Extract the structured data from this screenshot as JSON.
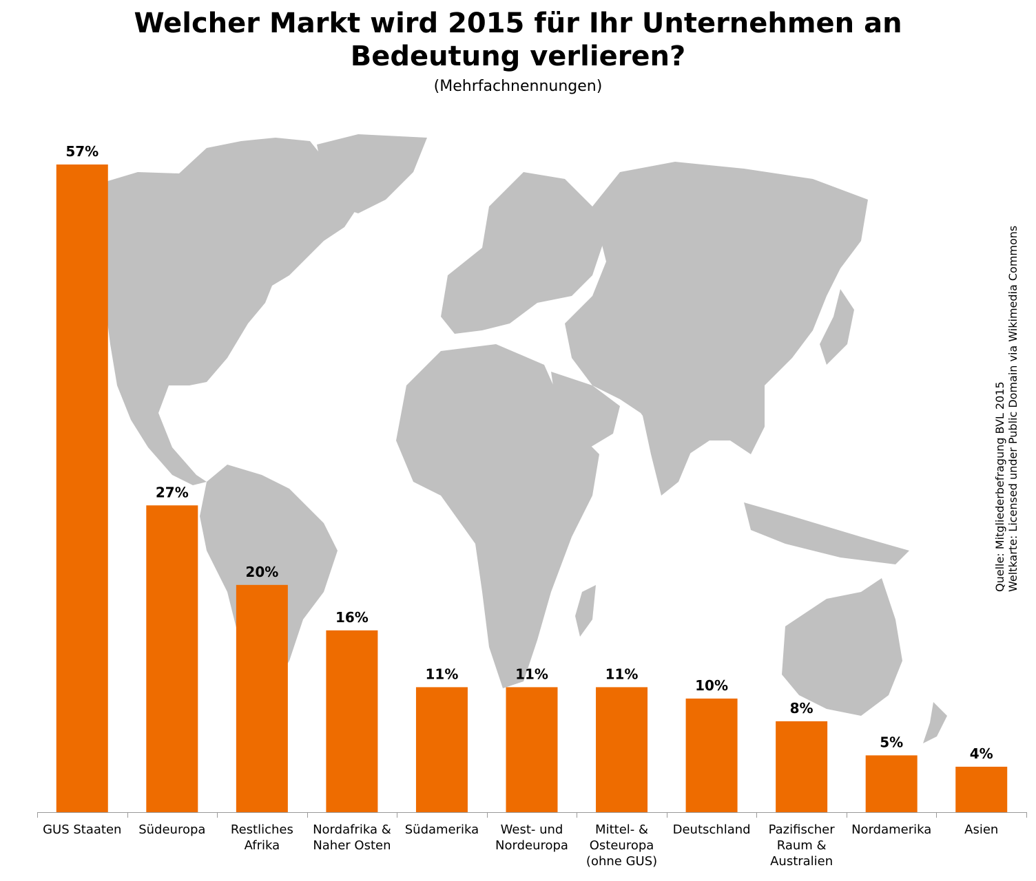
{
  "chart_data": {
    "type": "bar",
    "title_lines": [
      "Welcher Markt wird 2015 für Ihr Unternehmen an",
      "Bedeutung verlieren?"
    ],
    "subtitle": "(Mehrfachnennungen)",
    "categories": [
      [
        "GUS Staaten"
      ],
      [
        "Südeuropa"
      ],
      [
        "Restliches",
        "Afrika"
      ],
      [
        "Nordafrika &",
        "Naher Osten"
      ],
      [
        "Südamerika"
      ],
      [
        "West- und",
        "Nordeuropa"
      ],
      [
        "Mittel- &",
        "Osteuropa",
        "(ohne GUS)"
      ],
      [
        "Deutschland"
      ],
      [
        "Pazifischer",
        "Raum &",
        "Australien"
      ],
      [
        "Nordamerika"
      ],
      [
        "Asien"
      ]
    ],
    "values": [
      57,
      27,
      20,
      16,
      11,
      11,
      11,
      10,
      8,
      5,
      4
    ],
    "value_labels": [
      "57%",
      "27%",
      "20%",
      "16%",
      "11%",
      "11%",
      "11%",
      "10%",
      "8%",
      "5%",
      "4%"
    ],
    "bar_color": "#ee6c00",
    "background": "world map (grey)",
    "map_color": "#c0c0c0",
    "grid": false,
    "legend": "none",
    "ylim": [
      0,
      57
    ]
  },
  "source_lines": [
    "Quelle: Mitgliederbefragung BVL 2015",
    "Weltkarte: Licensed under Public Domain via Wikimedia Commons"
  ]
}
